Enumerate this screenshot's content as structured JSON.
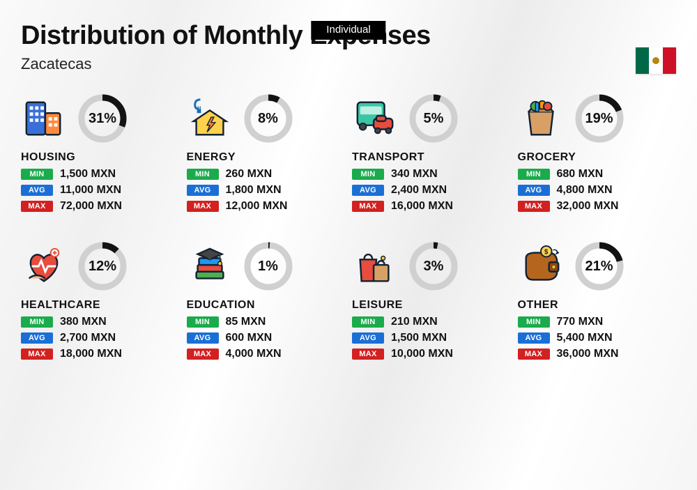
{
  "tab_label": "Individual",
  "title": "Distribution of Monthly Expenses",
  "subtitle": "Zacatecas",
  "flag": {
    "left": "#006847",
    "middle": "#ffffff",
    "right": "#ce1126"
  },
  "currency": "MXN",
  "donut": {
    "track_color": "#d0d0d0",
    "progress_color": "#131313",
    "stroke_width": 9,
    "radius": 30
  },
  "stat_labels": {
    "min": "MIN",
    "avg": "AVG",
    "max": "MAX"
  },
  "stat_colors": {
    "min": "#1aab4c",
    "avg": "#1a6fd6",
    "max": "#d32020"
  },
  "categories": [
    {
      "key": "housing",
      "name": "HOUSING",
      "percent": 31,
      "min": "1,500 MXN",
      "avg": "11,000 MXN",
      "max": "72,000 MXN"
    },
    {
      "key": "energy",
      "name": "ENERGY",
      "percent": 8,
      "min": "260 MXN",
      "avg": "1,800 MXN",
      "max": "12,000 MXN"
    },
    {
      "key": "transport",
      "name": "TRANSPORT",
      "percent": 5,
      "min": "340 MXN",
      "avg": "2,400 MXN",
      "max": "16,000 MXN"
    },
    {
      "key": "grocery",
      "name": "GROCERY",
      "percent": 19,
      "min": "680 MXN",
      "avg": "4,800 MXN",
      "max": "32,000 MXN"
    },
    {
      "key": "healthcare",
      "name": "HEALTHCARE",
      "percent": 12,
      "min": "380 MXN",
      "avg": "2,700 MXN",
      "max": "18,000 MXN"
    },
    {
      "key": "education",
      "name": "EDUCATION",
      "percent": 1,
      "min": "85 MXN",
      "avg": "600 MXN",
      "max": "4,000 MXN"
    },
    {
      "key": "leisure",
      "name": "LEISURE",
      "percent": 3,
      "min": "210 MXN",
      "avg": "1,500 MXN",
      "max": "10,000 MXN"
    },
    {
      "key": "other",
      "name": "OTHER",
      "percent": 21,
      "min": "770 MXN",
      "avg": "5,400 MXN",
      "max": "36,000 MXN"
    }
  ]
}
